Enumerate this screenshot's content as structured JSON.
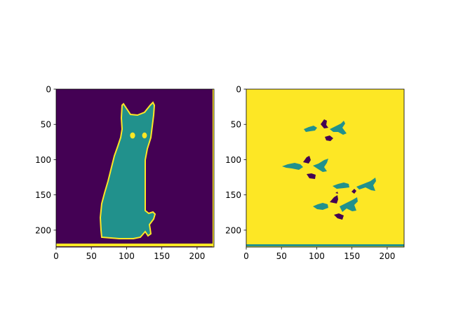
{
  "figure": {
    "background": "#ffffff",
    "colormap": "viridis",
    "colors": {
      "low": "#440154",
      "mid": "#21918c",
      "high": "#fde725"
    }
  },
  "chart_data": [
    {
      "type": "heatmap",
      "title": "",
      "xlabel": "",
      "ylabel": "",
      "xlim": [
        0,
        224
      ],
      "ylim": [
        224,
        0
      ],
      "xticks": [
        "0",
        "50",
        "100",
        "150",
        "200"
      ],
      "yticks": [
        "0",
        "50",
        "100",
        "150",
        "200"
      ],
      "value_colors": {
        "0": "#440154",
        "1": "#21918c",
        "2": "#fde725"
      },
      "content": "segmentation mask: background class 0, object (cat) class 1, object boundary and eyes class 2"
    },
    {
      "type": "heatmap",
      "title": "",
      "xlabel": "",
      "ylabel": "",
      "xlim": [
        0,
        224
      ],
      "ylim": [
        224,
        0
      ],
      "xticks": [
        "0",
        "50",
        "100",
        "150",
        "200"
      ],
      "yticks": [
        "0",
        "50",
        "100",
        "150",
        "200"
      ],
      "value_colors": {
        "0": "#440154",
        "1": "#21918c",
        "2": "#fde725"
      },
      "content": "predicted mask: mostly class 2 with scattered class 1 and class 0 blobs"
    }
  ]
}
